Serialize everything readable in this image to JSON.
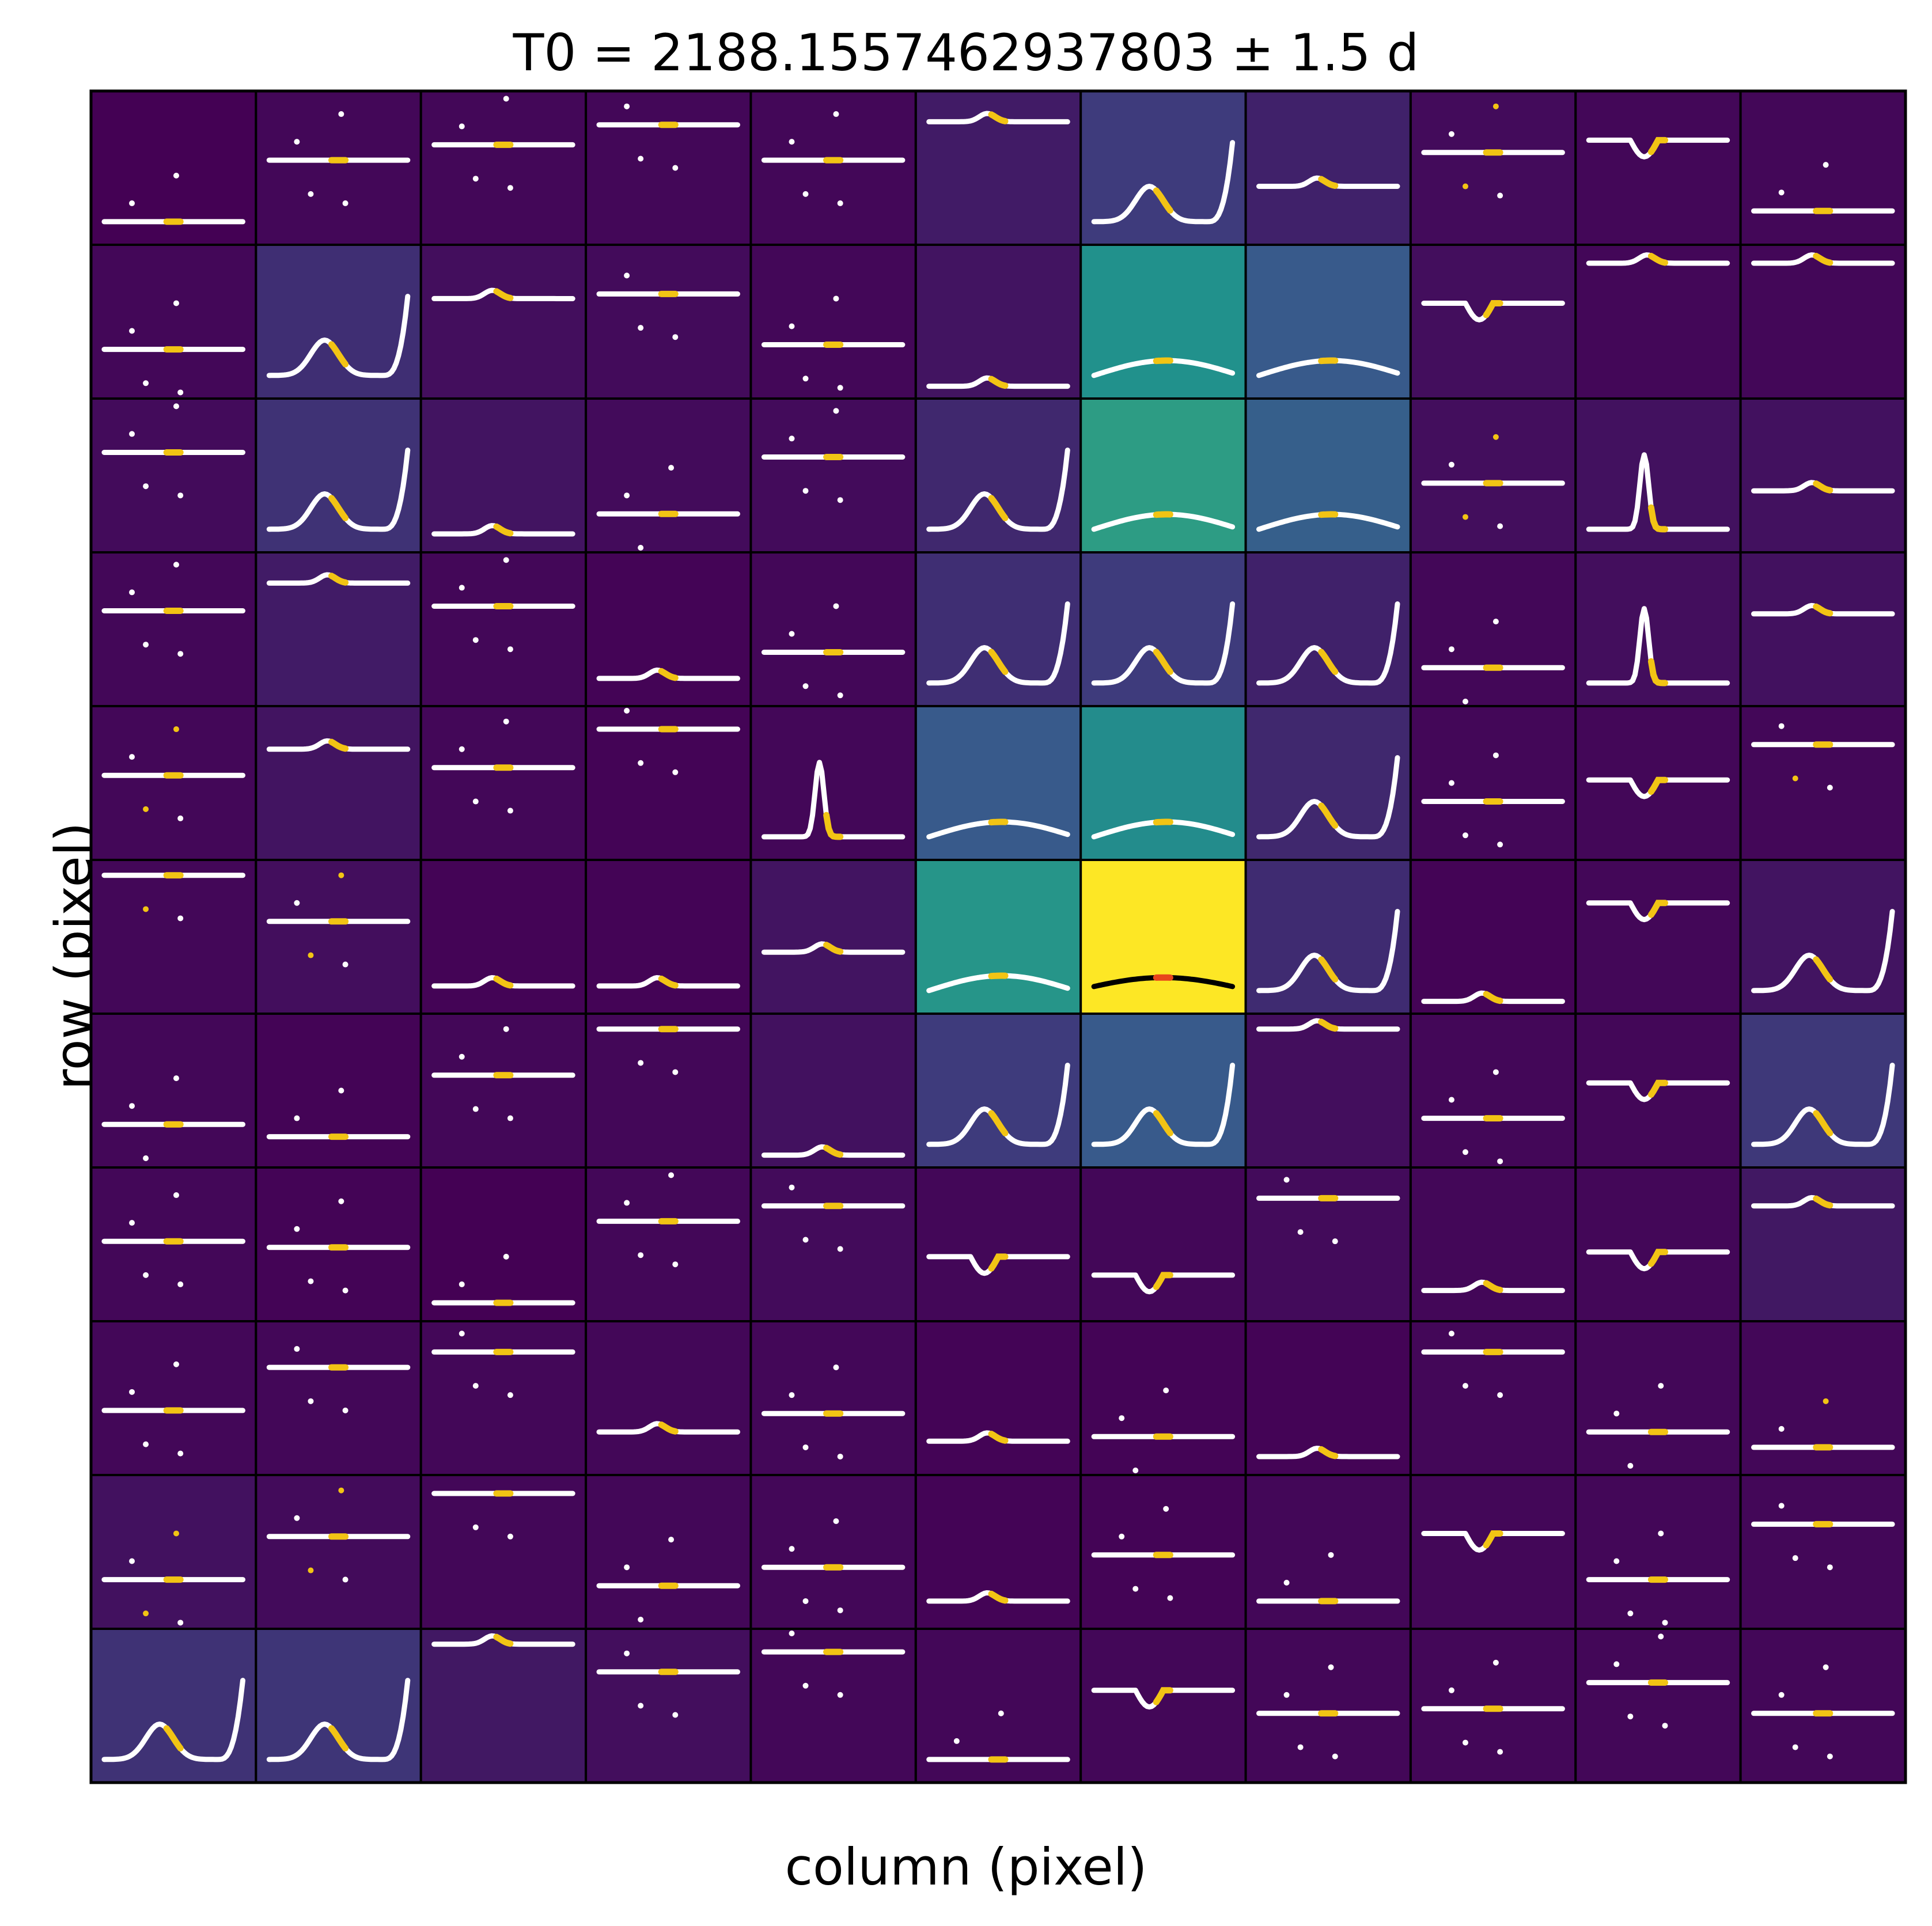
{
  "chart_data": {
    "type": "heatmap",
    "title": "T0 = 2188.1557462937803 ± 1.5 d",
    "xlabel": "column (pixel)",
    "ylabel": "row (pixel)",
    "grid": {
      "rows": 11,
      "cols": 11
    },
    "colormap": "viridis",
    "intensity": [
      [
        0.0,
        0.02,
        0.02,
        0.02,
        0.02,
        0.08,
        0.18,
        0.1,
        0.03,
        0.02,
        0.02
      ],
      [
        0.02,
        0.14,
        0.04,
        0.03,
        0.02,
        0.06,
        0.5,
        0.28,
        0.04,
        0.02,
        0.02
      ],
      [
        0.03,
        0.15,
        0.06,
        0.03,
        0.03,
        0.12,
        0.55,
        0.3,
        0.04,
        0.05,
        0.05
      ],
      [
        0.02,
        0.08,
        0.02,
        0.01,
        0.02,
        0.14,
        0.18,
        0.1,
        0.02,
        0.04,
        0.05
      ],
      [
        0.02,
        0.06,
        0.02,
        0.01,
        0.02,
        0.28,
        0.48,
        0.12,
        0.02,
        0.02,
        0.02
      ],
      [
        0.02,
        0.04,
        0.01,
        0.01,
        0.06,
        0.52,
        1.0,
        0.13,
        0.01,
        0.02,
        0.06
      ],
      [
        0.02,
        0.01,
        0.02,
        0.02,
        0.05,
        0.18,
        0.28,
        0.04,
        0.02,
        0.02,
        0.17
      ],
      [
        0.02,
        0.01,
        0.0,
        0.02,
        0.03,
        0.02,
        0.02,
        0.03,
        0.02,
        0.02,
        0.07
      ],
      [
        0.02,
        0.02,
        0.02,
        0.02,
        0.02,
        0.01,
        0.01,
        0.01,
        0.02,
        0.02,
        0.02
      ],
      [
        0.05,
        0.03,
        0.02,
        0.02,
        0.02,
        0.01,
        0.01,
        0.02,
        0.02,
        0.02,
        0.02
      ],
      [
        0.15,
        0.16,
        0.07,
        0.04,
        0.02,
        0.02,
        0.02,
        0.02,
        0.02,
        0.02,
        0.02
      ]
    ],
    "curve_types": [
      [
        "sp",
        "sp",
        "sp",
        "sp",
        "sp",
        "fl",
        "bp",
        "fl",
        "sa",
        "ga",
        "sp"
      ],
      [
        "sp",
        "bp",
        "fl",
        "sp",
        "sp",
        "fl",
        "ri",
        "ri",
        "ga",
        "fl",
        "fl"
      ],
      [
        "sp",
        "bp",
        "fl",
        "sp",
        "sp",
        "bp",
        "ri",
        "ri",
        "sa",
        "pk",
        "fl"
      ],
      [
        "sp",
        "fl",
        "sp",
        "fl",
        "sp",
        "bp",
        "bp",
        "bp",
        "sp",
        "pk",
        "fl"
      ],
      [
        "sa",
        "fl",
        "sp",
        "sp",
        "pk",
        "ri",
        "ri",
        "bp",
        "sp",
        "ga",
        "sa"
      ],
      [
        "sa",
        "sa",
        "fl",
        "fl",
        "fl",
        "ri",
        "hl",
        "bp",
        "fl",
        "ga",
        "bp"
      ],
      [
        "sp",
        "sp",
        "sp",
        "sp",
        "fl",
        "bp",
        "bp",
        "fl",
        "sp",
        "ga",
        "bp"
      ],
      [
        "sp",
        "sp",
        "sp",
        "sp",
        "sp",
        "ga",
        "ga",
        "sp",
        "fl",
        "ga",
        "fl"
      ],
      [
        "sp",
        "sp",
        "sp",
        "fl",
        "sp",
        "fl",
        "sp",
        "fl",
        "sp",
        "sp",
        "sa"
      ],
      [
        "sa",
        "sa",
        "sp",
        "sp",
        "sp",
        "fl",
        "sp",
        "sp",
        "ga",
        "sp",
        "sp"
      ],
      [
        "bp",
        "bp",
        "fl",
        "sp",
        "sp",
        "sp",
        "ga",
        "sp",
        "sp",
        "sp",
        "sp"
      ]
    ],
    "baseline_level": [
      [
        0.85,
        0.45,
        0.35,
        0.22,
        0.45,
        0.2,
        0.88,
        0.62,
        0.4,
        0.32,
        0.78
      ],
      [
        0.68,
        0.9,
        0.35,
        0.32,
        0.65,
        0.92,
        0.88,
        0.88,
        0.38,
        0.12,
        0.12
      ],
      [
        0.35,
        0.92,
        0.88,
        0.75,
        0.38,
        0.88,
        0.92,
        0.9,
        0.55,
        0.6,
        0.6
      ],
      [
        0.38,
        0.2,
        0.35,
        0.82,
        0.65,
        0.88,
        0.9,
        0.88,
        0.75,
        0.68,
        0.4
      ],
      [
        0.45,
        0.28,
        0.4,
        0.15,
        0.6,
        0.9,
        0.9,
        0.88,
        0.62,
        0.48,
        0.25
      ],
      [
        0.1,
        0.4,
        0.82,
        0.82,
        0.6,
        0.88,
        0.88,
        0.85,
        0.92,
        0.28,
        0.92
      ],
      [
        0.72,
        0.8,
        0.4,
        0.1,
        0.92,
        0.88,
        0.88,
        0.1,
        0.68,
        0.45,
        0.88
      ],
      [
        0.48,
        0.52,
        0.88,
        0.35,
        0.25,
        0.58,
        0.7,
        0.2,
        0.8,
        0.55,
        0.25
      ],
      [
        0.58,
        0.3,
        0.2,
        0.72,
        0.6,
        0.78,
        0.75,
        0.88,
        0.2,
        0.72,
        0.82
      ],
      [
        0.68,
        0.4,
        0.12,
        0.72,
        0.6,
        0.82,
        0.52,
        0.82,
        0.38,
        0.68,
        0.32
      ],
      [
        0.88,
        0.88,
        0.1,
        0.28,
        0.15,
        0.85,
        0.4,
        0.55,
        0.52,
        0.35,
        0.55
      ]
    ]
  }
}
